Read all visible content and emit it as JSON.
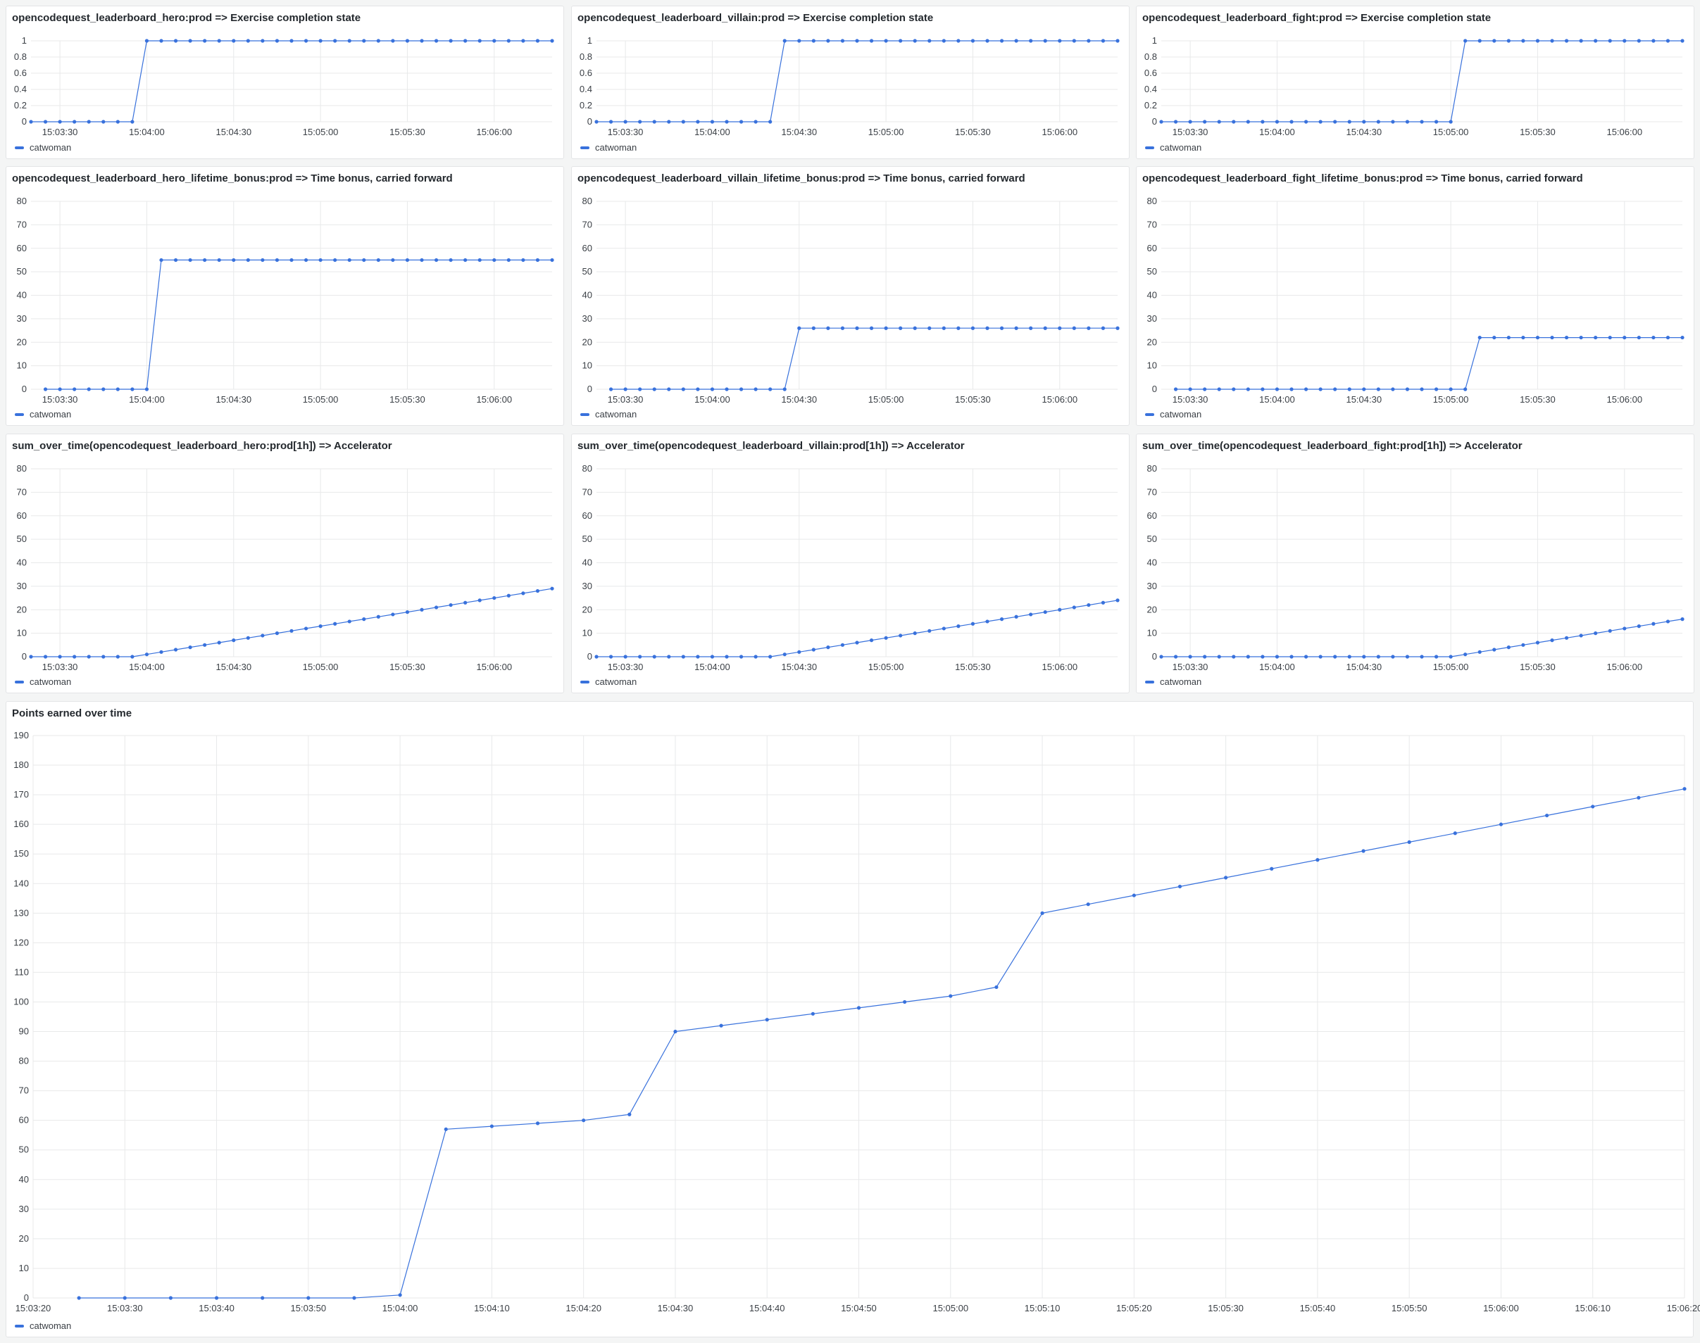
{
  "colors": {
    "series": "#3871dc",
    "grid": "#e8e9ea",
    "background": "#f4f5f5",
    "panel": "#ffffff"
  },
  "chart_data": [
    {
      "type": "line",
      "title": "opencodequest_leaderboard_hero:prod => Exercise completion state",
      "legend": "catwoman",
      "ylim": [
        0,
        1
      ],
      "yticks": [
        0,
        0.2,
        0.4,
        0.6,
        0.8,
        1
      ],
      "xlim": [
        "15:03:20",
        "15:06:20"
      ],
      "xticks": [
        "15:03:30",
        "15:04:00",
        "15:04:30",
        "15:05:00",
        "15:05:30",
        "15:06:00"
      ],
      "x": [
        "15:03:20",
        "15:03:25",
        "15:03:30",
        "15:03:35",
        "15:03:40",
        "15:03:45",
        "15:03:50",
        "15:03:55",
        "15:04:00",
        "15:04:05",
        "15:04:10",
        "15:04:15",
        "15:04:20",
        "15:04:25",
        "15:04:30",
        "15:04:35",
        "15:04:40",
        "15:04:45",
        "15:04:50",
        "15:04:55",
        "15:05:00",
        "15:05:05",
        "15:05:10",
        "15:05:15",
        "15:05:20",
        "15:05:25",
        "15:05:30",
        "15:05:35",
        "15:05:40",
        "15:05:45",
        "15:05:50",
        "15:05:55",
        "15:06:00",
        "15:06:05",
        "15:06:10",
        "15:06:15",
        "15:06:20"
      ],
      "values": [
        0,
        0,
        0,
        0,
        0,
        0,
        0,
        0,
        1,
        1,
        1,
        1,
        1,
        1,
        1,
        1,
        1,
        1,
        1,
        1,
        1,
        1,
        1,
        1,
        1,
        1,
        1,
        1,
        1,
        1,
        1,
        1,
        1,
        1,
        1,
        1,
        1
      ]
    },
    {
      "type": "line",
      "title": "opencodequest_leaderboard_villain:prod => Exercise completion state",
      "legend": "catwoman",
      "ylim": [
        0,
        1
      ],
      "yticks": [
        0,
        0.2,
        0.4,
        0.6,
        0.8,
        1
      ],
      "xlim": [
        "15:03:20",
        "15:06:20"
      ],
      "xticks": [
        "15:03:30",
        "15:04:00",
        "15:04:30",
        "15:05:00",
        "15:05:30",
        "15:06:00"
      ],
      "x": [
        "15:03:20",
        "15:03:25",
        "15:03:30",
        "15:03:35",
        "15:03:40",
        "15:03:45",
        "15:03:50",
        "15:03:55",
        "15:04:00",
        "15:04:05",
        "15:04:10",
        "15:04:15",
        "15:04:20",
        "15:04:25",
        "15:04:30",
        "15:04:35",
        "15:04:40",
        "15:04:45",
        "15:04:50",
        "15:04:55",
        "15:05:00",
        "15:05:05",
        "15:05:10",
        "15:05:15",
        "15:05:20",
        "15:05:25",
        "15:05:30",
        "15:05:35",
        "15:05:40",
        "15:05:45",
        "15:05:50",
        "15:05:55",
        "15:06:00",
        "15:06:05",
        "15:06:10",
        "15:06:15",
        "15:06:20"
      ],
      "values": [
        0,
        0,
        0,
        0,
        0,
        0,
        0,
        0,
        0,
        0,
        0,
        0,
        0,
        1,
        1,
        1,
        1,
        1,
        1,
        1,
        1,
        1,
        1,
        1,
        1,
        1,
        1,
        1,
        1,
        1,
        1,
        1,
        1,
        1,
        1,
        1,
        1
      ]
    },
    {
      "type": "line",
      "title": "opencodequest_leaderboard_fight:prod => Exercise completion state",
      "legend": "catwoman",
      "ylim": [
        0,
        1
      ],
      "yticks": [
        0,
        0.2,
        0.4,
        0.6,
        0.8,
        1
      ],
      "xlim": [
        "15:03:20",
        "15:06:20"
      ],
      "xticks": [
        "15:03:30",
        "15:04:00",
        "15:04:30",
        "15:05:00",
        "15:05:30",
        "15:06:00"
      ],
      "x": [
        "15:03:20",
        "15:03:25",
        "15:03:30",
        "15:03:35",
        "15:03:40",
        "15:03:45",
        "15:03:50",
        "15:03:55",
        "15:04:00",
        "15:04:05",
        "15:04:10",
        "15:04:15",
        "15:04:20",
        "15:04:25",
        "15:04:30",
        "15:04:35",
        "15:04:40",
        "15:04:45",
        "15:04:50",
        "15:04:55",
        "15:05:00",
        "15:05:05",
        "15:05:10",
        "15:05:15",
        "15:05:20",
        "15:05:25",
        "15:05:30",
        "15:05:35",
        "15:05:40",
        "15:05:45",
        "15:05:50",
        "15:05:55",
        "15:06:00",
        "15:06:05",
        "15:06:10",
        "15:06:15",
        "15:06:20"
      ],
      "values": [
        0,
        0,
        0,
        0,
        0,
        0,
        0,
        0,
        0,
        0,
        0,
        0,
        0,
        0,
        0,
        0,
        0,
        0,
        0,
        0,
        0,
        1,
        1,
        1,
        1,
        1,
        1,
        1,
        1,
        1,
        1,
        1,
        1,
        1,
        1,
        1,
        1
      ]
    },
    {
      "type": "line",
      "title": "opencodequest_leaderboard_hero_lifetime_bonus:prod => Time bonus, carried forward",
      "legend": "catwoman",
      "ylim": [
        0,
        80
      ],
      "yticks": [
        0,
        10,
        20,
        30,
        40,
        50,
        60,
        70,
        80
      ],
      "xlim": [
        "15:03:20",
        "15:06:20"
      ],
      "xticks": [
        "15:03:30",
        "15:04:00",
        "15:04:30",
        "15:05:00",
        "15:05:30",
        "15:06:00"
      ],
      "x": [
        "15:03:25",
        "15:03:30",
        "15:03:35",
        "15:03:40",
        "15:03:45",
        "15:03:50",
        "15:03:55",
        "15:04:00",
        "15:04:05",
        "15:04:10",
        "15:04:15",
        "15:04:20",
        "15:04:25",
        "15:04:30",
        "15:04:35",
        "15:04:40",
        "15:04:45",
        "15:04:50",
        "15:04:55",
        "15:05:00",
        "15:05:05",
        "15:05:10",
        "15:05:15",
        "15:05:20",
        "15:05:25",
        "15:05:30",
        "15:05:35",
        "15:05:40",
        "15:05:45",
        "15:05:50",
        "15:05:55",
        "15:06:00",
        "15:06:05",
        "15:06:10",
        "15:06:15",
        "15:06:20"
      ],
      "values": [
        0,
        0,
        0,
        0,
        0,
        0,
        0,
        0,
        55,
        55,
        55,
        55,
        55,
        55,
        55,
        55,
        55,
        55,
        55,
        55,
        55,
        55,
        55,
        55,
        55,
        55,
        55,
        55,
        55,
        55,
        55,
        55,
        55,
        55,
        55,
        55
      ]
    },
    {
      "type": "line",
      "title": "opencodequest_leaderboard_villain_lifetime_bonus:prod => Time bonus, carried forward",
      "legend": "catwoman",
      "ylim": [
        0,
        80
      ],
      "yticks": [
        0,
        10,
        20,
        30,
        40,
        50,
        60,
        70,
        80
      ],
      "xlim": [
        "15:03:20",
        "15:06:20"
      ],
      "xticks": [
        "15:03:30",
        "15:04:00",
        "15:04:30",
        "15:05:00",
        "15:05:30",
        "15:06:00"
      ],
      "x": [
        "15:03:25",
        "15:03:30",
        "15:03:35",
        "15:03:40",
        "15:03:45",
        "15:03:50",
        "15:03:55",
        "15:04:00",
        "15:04:05",
        "15:04:10",
        "15:04:15",
        "15:04:20",
        "15:04:25",
        "15:04:30",
        "15:04:35",
        "15:04:40",
        "15:04:45",
        "15:04:50",
        "15:04:55",
        "15:05:00",
        "15:05:05",
        "15:05:10",
        "15:05:15",
        "15:05:20",
        "15:05:25",
        "15:05:30",
        "15:05:35",
        "15:05:40",
        "15:05:45",
        "15:05:50",
        "15:05:55",
        "15:06:00",
        "15:06:05",
        "15:06:10",
        "15:06:15",
        "15:06:20"
      ],
      "values": [
        0,
        0,
        0,
        0,
        0,
        0,
        0,
        0,
        0,
        0,
        0,
        0,
        0,
        26,
        26,
        26,
        26,
        26,
        26,
        26,
        26,
        26,
        26,
        26,
        26,
        26,
        26,
        26,
        26,
        26,
        26,
        26,
        26,
        26,
        26,
        26
      ]
    },
    {
      "type": "line",
      "title": "opencodequest_leaderboard_fight_lifetime_bonus:prod => Time bonus, carried forward",
      "legend": "catwoman",
      "ylim": [
        0,
        80
      ],
      "yticks": [
        0,
        10,
        20,
        30,
        40,
        50,
        60,
        70,
        80
      ],
      "xlim": [
        "15:03:20",
        "15:06:20"
      ],
      "xticks": [
        "15:03:30",
        "15:04:00",
        "15:04:30",
        "15:05:00",
        "15:05:30",
        "15:06:00"
      ],
      "x": [
        "15:03:25",
        "15:03:30",
        "15:03:35",
        "15:03:40",
        "15:03:45",
        "15:03:50",
        "15:03:55",
        "15:04:00",
        "15:04:05",
        "15:04:10",
        "15:04:15",
        "15:04:20",
        "15:04:25",
        "15:04:30",
        "15:04:35",
        "15:04:40",
        "15:04:45",
        "15:04:50",
        "15:04:55",
        "15:05:00",
        "15:05:05",
        "15:05:10",
        "15:05:15",
        "15:05:20",
        "15:05:25",
        "15:05:30",
        "15:05:35",
        "15:05:40",
        "15:05:45",
        "15:05:50",
        "15:05:55",
        "15:06:00",
        "15:06:05",
        "15:06:10",
        "15:06:15",
        "15:06:20"
      ],
      "values": [
        0,
        0,
        0,
        0,
        0,
        0,
        0,
        0,
        0,
        0,
        0,
        0,
        0,
        0,
        0,
        0,
        0,
        0,
        0,
        0,
        0,
        22,
        22,
        22,
        22,
        22,
        22,
        22,
        22,
        22,
        22,
        22,
        22,
        22,
        22,
        22
      ]
    },
    {
      "type": "line",
      "title": "sum_over_time(opencodequest_leaderboard_hero:prod[1h]) => Accelerator",
      "legend": "catwoman",
      "ylim": [
        0,
        80
      ],
      "yticks": [
        0,
        10,
        20,
        30,
        40,
        50,
        60,
        70,
        80
      ],
      "xlim": [
        "15:03:20",
        "15:06:20"
      ],
      "xticks": [
        "15:03:30",
        "15:04:00",
        "15:04:30",
        "15:05:00",
        "15:05:30",
        "15:06:00"
      ],
      "x": [
        "15:03:20",
        "15:03:25",
        "15:03:30",
        "15:03:35",
        "15:03:40",
        "15:03:45",
        "15:03:50",
        "15:03:55",
        "15:04:00",
        "15:04:05",
        "15:04:10",
        "15:04:15",
        "15:04:20",
        "15:04:25",
        "15:04:30",
        "15:04:35",
        "15:04:40",
        "15:04:45",
        "15:04:50",
        "15:04:55",
        "15:05:00",
        "15:05:05",
        "15:05:10",
        "15:05:15",
        "15:05:20",
        "15:05:25",
        "15:05:30",
        "15:05:35",
        "15:05:40",
        "15:05:45",
        "15:05:50",
        "15:05:55",
        "15:06:00",
        "15:06:05",
        "15:06:10",
        "15:06:15",
        "15:06:20"
      ],
      "values": [
        0,
        0,
        0,
        0,
        0,
        0,
        0,
        0,
        1,
        2,
        3,
        4,
        5,
        6,
        7,
        8,
        9,
        10,
        11,
        12,
        13,
        14,
        15,
        16,
        17,
        18,
        19,
        20,
        21,
        22,
        23,
        24,
        25,
        26,
        27,
        28,
        29
      ]
    },
    {
      "type": "line",
      "title": "sum_over_time(opencodequest_leaderboard_villain:prod[1h]) => Accelerator",
      "legend": "catwoman",
      "ylim": [
        0,
        80
      ],
      "yticks": [
        0,
        10,
        20,
        30,
        40,
        50,
        60,
        70,
        80
      ],
      "xlim": [
        "15:03:20",
        "15:06:20"
      ],
      "xticks": [
        "15:03:30",
        "15:04:00",
        "15:04:30",
        "15:05:00",
        "15:05:30",
        "15:06:00"
      ],
      "x": [
        "15:03:20",
        "15:03:25",
        "15:03:30",
        "15:03:35",
        "15:03:40",
        "15:03:45",
        "15:03:50",
        "15:03:55",
        "15:04:00",
        "15:04:05",
        "15:04:10",
        "15:04:15",
        "15:04:20",
        "15:04:25",
        "15:04:30",
        "15:04:35",
        "15:04:40",
        "15:04:45",
        "15:04:50",
        "15:04:55",
        "15:05:00",
        "15:05:05",
        "15:05:10",
        "15:05:15",
        "15:05:20",
        "15:05:25",
        "15:05:30",
        "15:05:35",
        "15:05:40",
        "15:05:45",
        "15:05:50",
        "15:05:55",
        "15:06:00",
        "15:06:05",
        "15:06:10",
        "15:06:15",
        "15:06:20"
      ],
      "values": [
        0,
        0,
        0,
        0,
        0,
        0,
        0,
        0,
        0,
        0,
        0,
        0,
        0,
        1,
        2,
        3,
        4,
        5,
        6,
        7,
        8,
        9,
        10,
        11,
        12,
        13,
        14,
        15,
        16,
        17,
        18,
        19,
        20,
        21,
        22,
        23,
        24
      ]
    },
    {
      "type": "line",
      "title": "sum_over_time(opencodequest_leaderboard_fight:prod[1h]) => Accelerator",
      "legend": "catwoman",
      "ylim": [
        0,
        80
      ],
      "yticks": [
        0,
        10,
        20,
        30,
        40,
        50,
        60,
        70,
        80
      ],
      "xlim": [
        "15:03:20",
        "15:06:20"
      ],
      "xticks": [
        "15:03:30",
        "15:04:00",
        "15:04:30",
        "15:05:00",
        "15:05:30",
        "15:06:00"
      ],
      "x": [
        "15:03:20",
        "15:03:25",
        "15:03:30",
        "15:03:35",
        "15:03:40",
        "15:03:45",
        "15:03:50",
        "15:03:55",
        "15:04:00",
        "15:04:05",
        "15:04:10",
        "15:04:15",
        "15:04:20",
        "15:04:25",
        "15:04:30",
        "15:04:35",
        "15:04:40",
        "15:04:45",
        "15:04:50",
        "15:04:55",
        "15:05:00",
        "15:05:05",
        "15:05:10",
        "15:05:15",
        "15:05:20",
        "15:05:25",
        "15:05:30",
        "15:05:35",
        "15:05:40",
        "15:05:45",
        "15:05:50",
        "15:05:55",
        "15:06:00",
        "15:06:05",
        "15:06:10",
        "15:06:15",
        "15:06:20"
      ],
      "values": [
        0,
        0,
        0,
        0,
        0,
        0,
        0,
        0,
        0,
        0,
        0,
        0,
        0,
        0,
        0,
        0,
        0,
        0,
        0,
        0,
        0,
        1,
        2,
        3,
        4,
        5,
        6,
        7,
        8,
        9,
        10,
        11,
        12,
        13,
        14,
        15,
        16
      ]
    },
    {
      "type": "line",
      "title": "Points earned over time",
      "legend": "catwoman",
      "ylim": [
        0,
        190
      ],
      "yticks": [
        0,
        10,
        20,
        30,
        40,
        50,
        60,
        70,
        80,
        90,
        100,
        110,
        120,
        130,
        140,
        150,
        160,
        170,
        180,
        190
      ],
      "xlim": [
        "15:03:20",
        "15:06:20"
      ],
      "xticks": [
        "15:03:20",
        "15:03:30",
        "15:03:40",
        "15:03:50",
        "15:04:00",
        "15:04:10",
        "15:04:20",
        "15:04:30",
        "15:04:40",
        "15:04:50",
        "15:05:00",
        "15:05:10",
        "15:05:20",
        "15:05:30",
        "15:05:40",
        "15:05:50",
        "15:06:00",
        "15:06:10",
        "15:06:20"
      ],
      "x": [
        "15:03:25",
        "15:03:30",
        "15:03:35",
        "15:03:40",
        "15:03:45",
        "15:03:50",
        "15:03:55",
        "15:04:00",
        "15:04:05",
        "15:04:10",
        "15:04:15",
        "15:04:20",
        "15:04:25",
        "15:04:30",
        "15:04:35",
        "15:04:40",
        "15:04:45",
        "15:04:50",
        "15:04:55",
        "15:05:00",
        "15:05:05",
        "15:05:10",
        "15:05:15",
        "15:05:20",
        "15:05:25",
        "15:05:30",
        "15:05:35",
        "15:05:40",
        "15:05:45",
        "15:05:50",
        "15:05:55",
        "15:06:00",
        "15:06:05",
        "15:06:10",
        "15:06:15",
        "15:06:20"
      ],
      "values": [
        0,
        0,
        0,
        0,
        0,
        0,
        0,
        1,
        57,
        58,
        59,
        60,
        62,
        90,
        92,
        94,
        96,
        98,
        100,
        102,
        105,
        130,
        133,
        136,
        139,
        142,
        145,
        148,
        151,
        154,
        157,
        160,
        163,
        166,
        169,
        172
      ]
    }
  ]
}
